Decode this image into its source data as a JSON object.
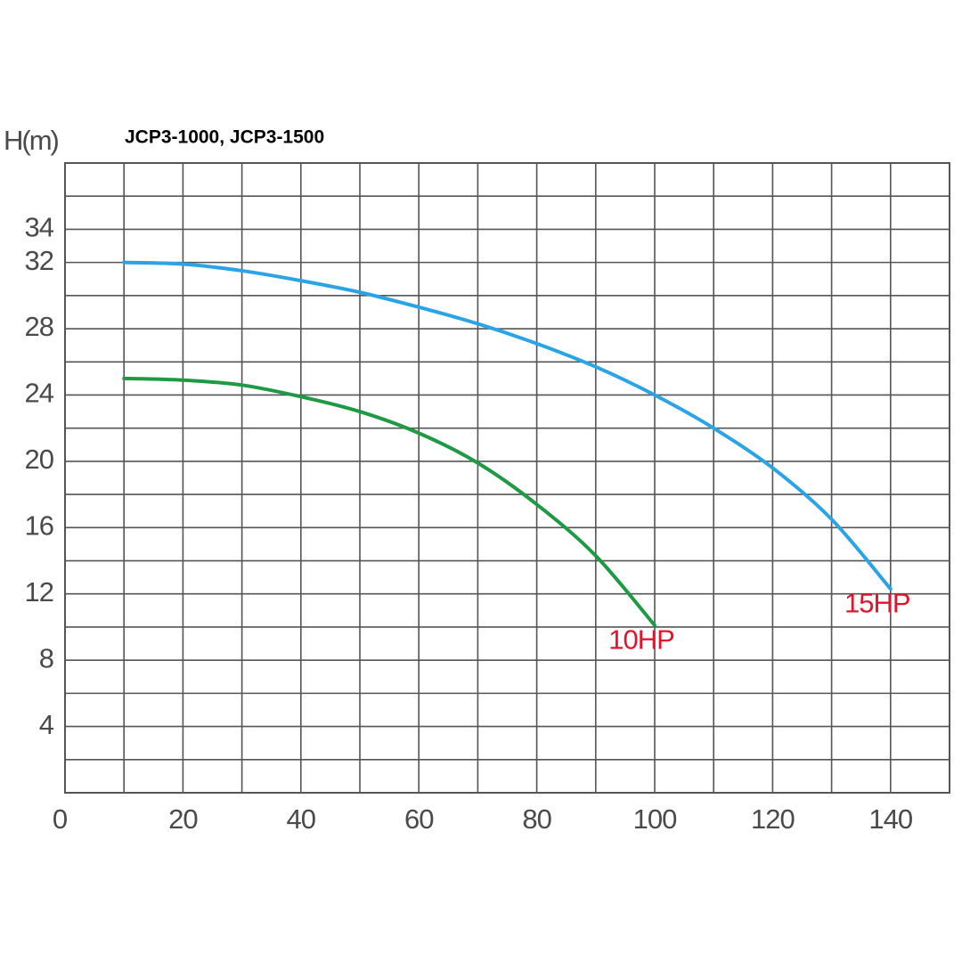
{
  "chart_data": {
    "type": "line",
    "title": "JCP3-1000, JCP3-1500",
    "y_label": "H(m)",
    "xlim": [
      0,
      150
    ],
    "ylim": [
      0,
      38
    ],
    "xticks": [
      0,
      20,
      40,
      60,
      80,
      100,
      120,
      140
    ],
    "minor_xticks": [
      10,
      30,
      50,
      70,
      90,
      110,
      130,
      150
    ],
    "yticks": [
      4,
      8,
      12,
      16,
      20,
      24,
      28,
      32,
      34
    ],
    "minor_yticks": [
      2,
      6,
      10,
      14,
      18,
      22,
      26,
      30,
      36,
      38
    ],
    "grid": true,
    "x": [
      10,
      20,
      30,
      40,
      50,
      60,
      70,
      80,
      90,
      100,
      110,
      120,
      130,
      140
    ],
    "series": [
      {
        "name": "10HP",
        "color": "#1e9a45",
        "label_color": "#e0142c",
        "values": [
          25,
          24.9,
          24.6,
          23.9,
          23.0,
          21.7,
          19.9,
          17.4,
          14.3,
          10.1,
          null,
          null,
          null,
          null
        ]
      },
      {
        "name": "15HP",
        "color": "#2aa4e6",
        "label_color": "#e0142c",
        "values": [
          32,
          31.9,
          31.5,
          30.9,
          30.2,
          29.3,
          28.3,
          27.1,
          25.7,
          24,
          22,
          19.6,
          16.5,
          12.3
        ]
      }
    ]
  }
}
